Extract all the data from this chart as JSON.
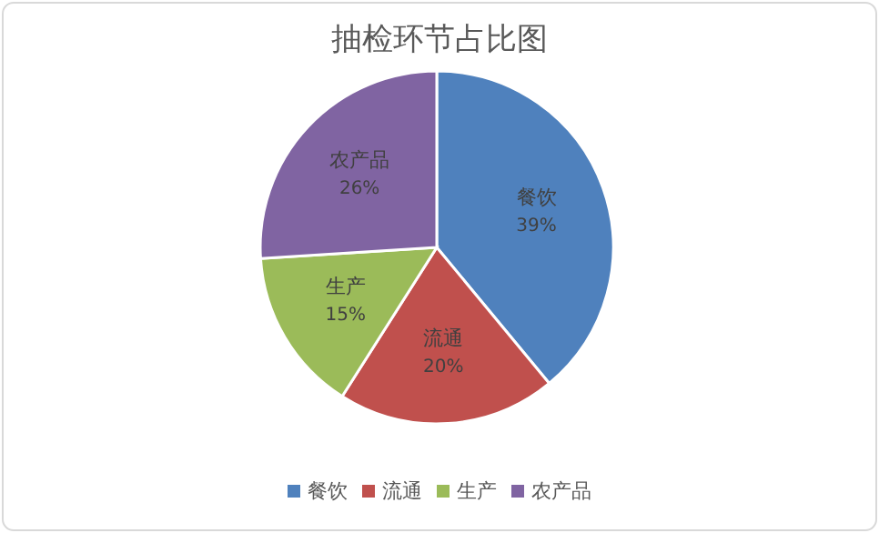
{
  "chart_data": {
    "type": "pie",
    "title": "抽检环节占比图",
    "categories": [
      "餐饮",
      "流通",
      "生产",
      "农产品"
    ],
    "values": [
      39,
      20,
      15,
      26
    ],
    "colors": [
      "#4f81bd",
      "#c0504d",
      "#9bbb59",
      "#8064a2"
    ],
    "value_labels": [
      "39%",
      "20%",
      "15%",
      "26%"
    ],
    "legend": "bottom"
  }
}
